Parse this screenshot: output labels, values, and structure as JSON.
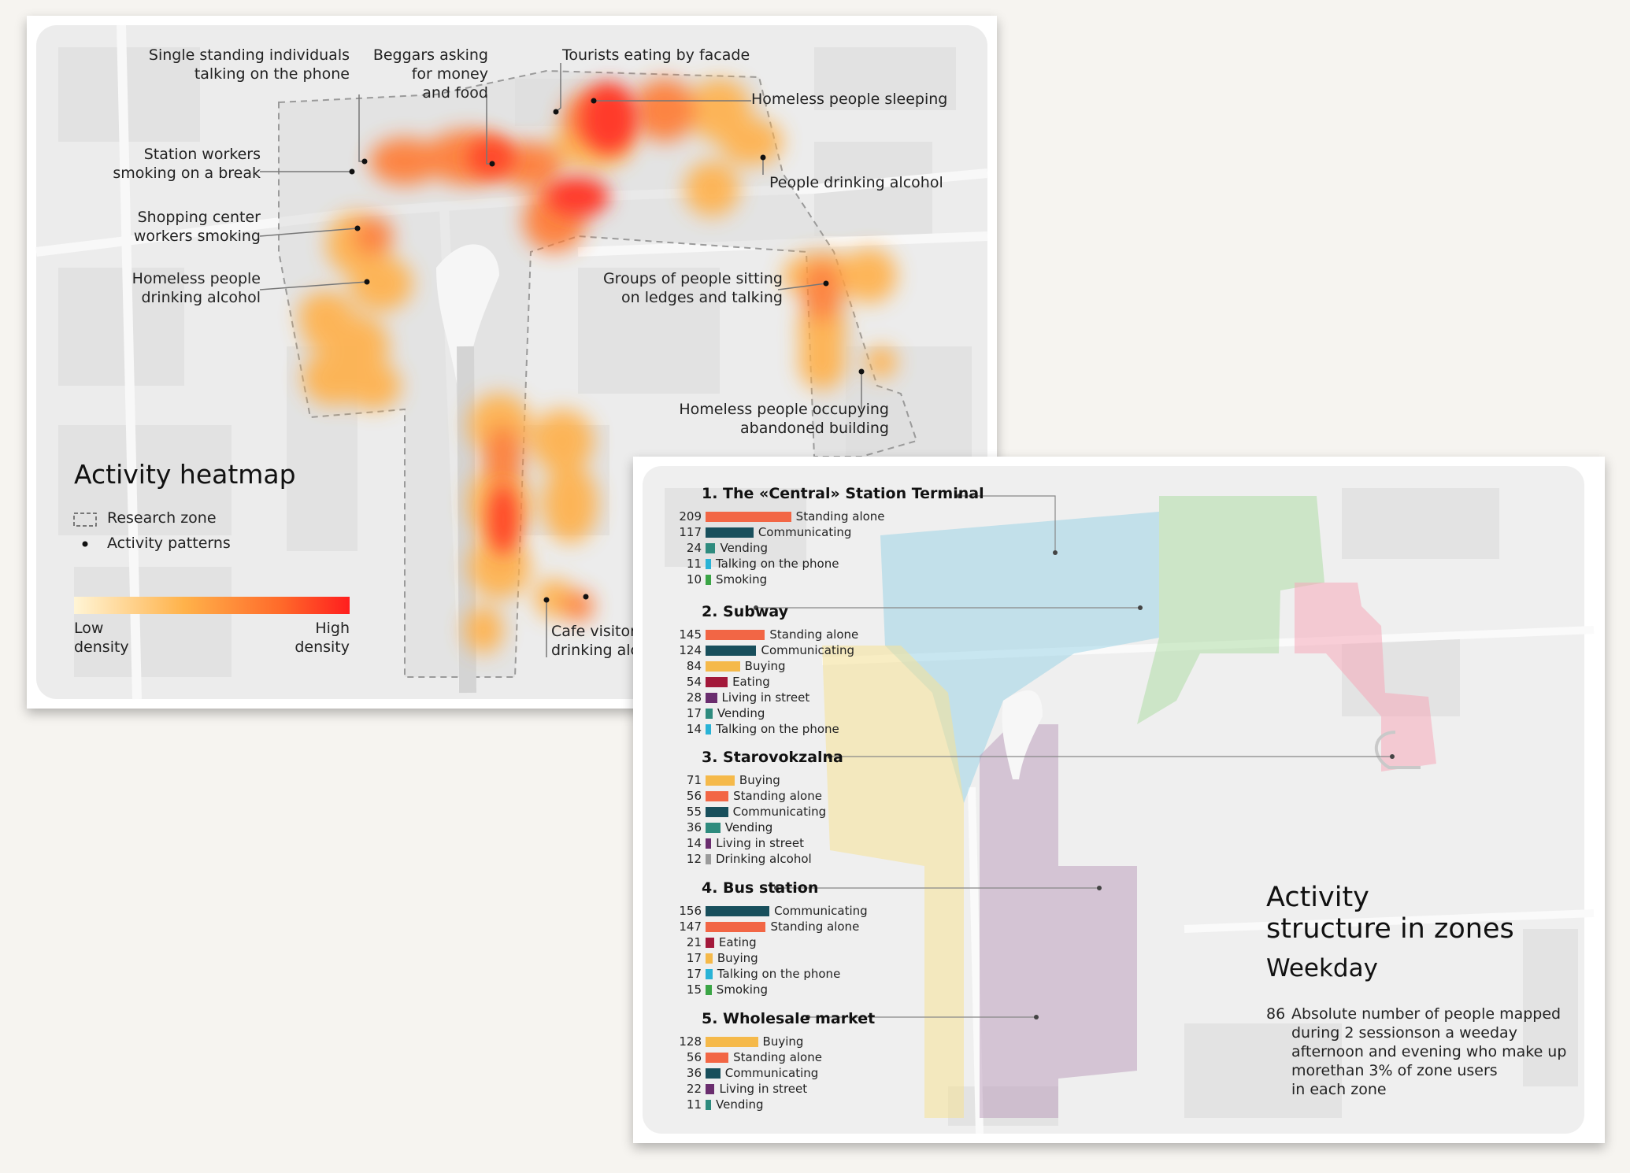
{
  "heatmap": {
    "title": "Activity heatmap",
    "legend": {
      "zone_label": "Research zone",
      "patterns_label": "Activity patterns",
      "low_label_1": "Low",
      "low_label_2": "density",
      "high_label_1": "High",
      "high_label_2": "density",
      "gradient_colors": [
        "#fff5d6",
        "#ffb24a",
        "#ff6a2a",
        "#ff1e1e"
      ]
    },
    "annotations": {
      "a1_l1": "Single standing individuals",
      "a1_l2": "talking on the phone",
      "a2_l1": "Beggars asking",
      "a2_l2": "for money",
      "a2_l3": "and food",
      "a3_l1": "Tourists eating by facade",
      "a4_l1": "Homeless people sleeping",
      "a5_l1": "Station workers",
      "a5_l2": "smoking on a break",
      "a6_l1": "People drinking alcohol",
      "a7_l1": "Shopping center",
      "a7_l2": "workers smoking",
      "a8_l1": "Homeless people",
      "a8_l2": "drinking alcohol",
      "a9_l1": "Groups of people sitting",
      "a9_l2": "on ledges and talking",
      "a10_l1": "Homeless people occupying",
      "a10_l2": "abandoned building",
      "a11_l1": "Cafe visitors",
      "a11_l2": "drinking alcohol"
    }
  },
  "zones": {
    "title_l1": "Activity",
    "title_l2": "structure in zones",
    "subtitle": "Weekday",
    "note_number": "86",
    "note_l1": "Absolute number of people mapped",
    "note_l2": "during 2 sessionson a weeday",
    "note_l3": "afternoon and evening who make up",
    "note_l4": "morethan 3% of zone users",
    "note_l5": "in each zone",
    "colors": {
      "Standing alone": "#f26645",
      "Communicating": "#184f5c",
      "Vending": "#2e8b7e",
      "Talking on the phone": "#29b3d6",
      "Smoking": "#3ba546",
      "Buying": "#f5b94a",
      "Eating": "#a3183a",
      "Living in street": "#6a2d6e",
      "Drinking alcohol": "#9b9b9b"
    },
    "list": [
      {
        "name": "1. The «Central» Station Terminal",
        "rows": [
          {
            "value": 209,
            "label": "Standing alone"
          },
          {
            "value": 117,
            "label": "Communicating"
          },
          {
            "value": 24,
            "label": "Vending"
          },
          {
            "value": 11,
            "label": "Talking on the phone"
          },
          {
            "value": 10,
            "label": "Smoking"
          }
        ]
      },
      {
        "name": "2. Subway",
        "rows": [
          {
            "value": 145,
            "label": "Standing alone"
          },
          {
            "value": 124,
            "label": "Communicating"
          },
          {
            "value": 84,
            "label": "Buying"
          },
          {
            "value": 54,
            "label": "Eating"
          },
          {
            "value": 28,
            "label": "Living in street"
          },
          {
            "value": 17,
            "label": "Vending"
          },
          {
            "value": 14,
            "label": "Talking on the phone"
          }
        ]
      },
      {
        "name": "3. Starovokzalna",
        "rows": [
          {
            "value": 71,
            "label": "Buying"
          },
          {
            "value": 56,
            "label": "Standing alone"
          },
          {
            "value": 55,
            "label": "Communicating"
          },
          {
            "value": 36,
            "label": "Vending"
          },
          {
            "value": 14,
            "label": "Living in street"
          },
          {
            "value": 12,
            "label": "Drinking alcohol"
          }
        ]
      },
      {
        "name": "4. Bus station",
        "rows": [
          {
            "value": 156,
            "label": "Communicating"
          },
          {
            "value": 147,
            "label": "Standing alone"
          },
          {
            "value": 21,
            "label": "Eating"
          },
          {
            "value": 17,
            "label": "Buying"
          },
          {
            "value": 17,
            "label": "Talking on the phone"
          },
          {
            "value": 15,
            "label": "Smoking"
          }
        ]
      },
      {
        "name": "5. Wholesale market",
        "rows": [
          {
            "value": 128,
            "label": "Buying"
          },
          {
            "value": 56,
            "label": "Standing alone"
          },
          {
            "value": 36,
            "label": "Communicating"
          },
          {
            "value": 22,
            "label": "Living in street"
          },
          {
            "value": 11,
            "label": "Vending"
          }
        ]
      }
    ]
  }
}
